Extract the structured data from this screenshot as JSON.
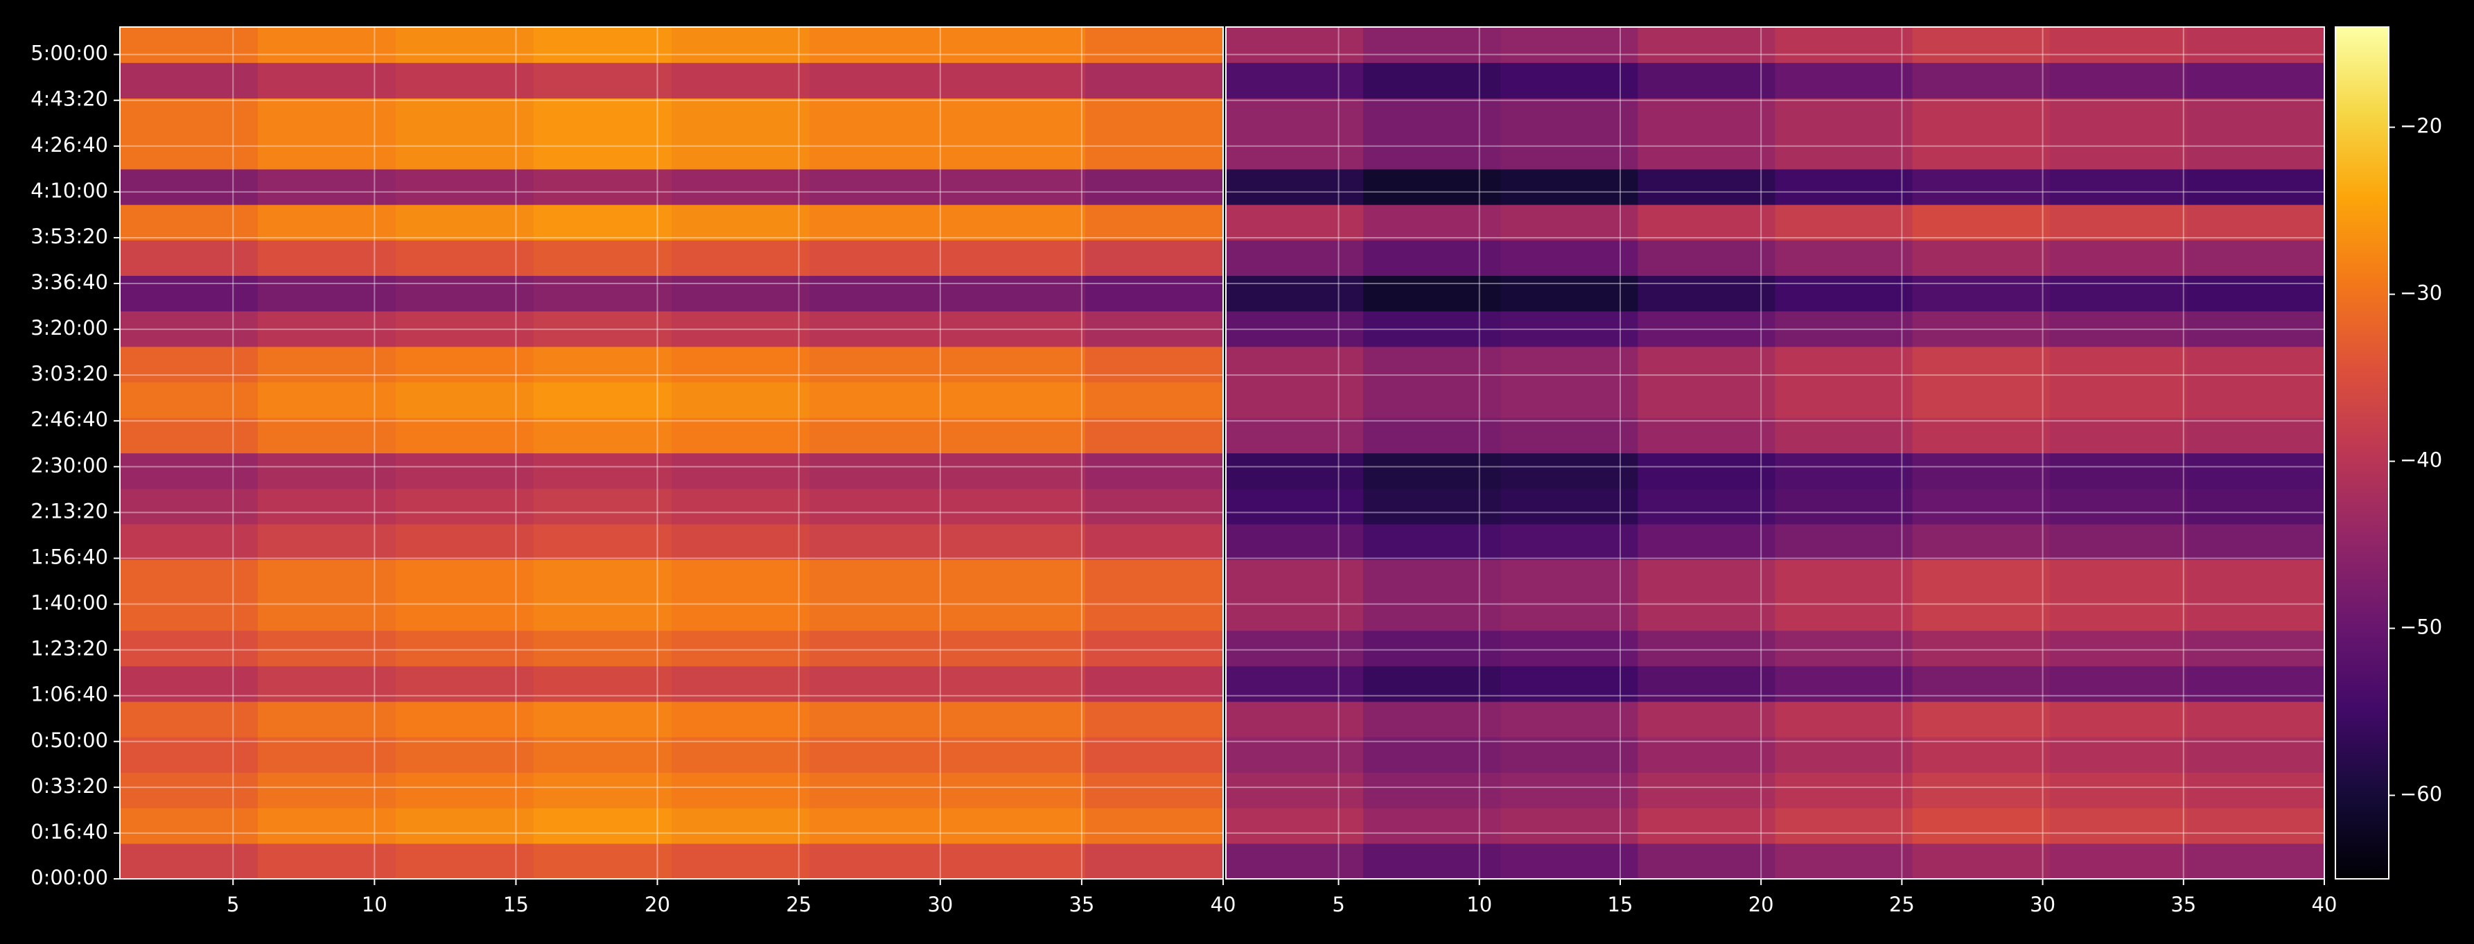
{
  "chart_data": {
    "type": "heatmap",
    "colormap": "inferno",
    "grid": true,
    "ylim": [
      0,
      18600
    ],
    "yticks": [
      {
        "value": 0,
        "label": "0:00:00"
      },
      {
        "value": 1000,
        "label": "0:16:40"
      },
      {
        "value": 2000,
        "label": "0:33:20"
      },
      {
        "value": 3000,
        "label": "0:50:00"
      },
      {
        "value": 4000,
        "label": "1:06:40"
      },
      {
        "value": 5000,
        "label": "1:23:20"
      },
      {
        "value": 6000,
        "label": "1:40:00"
      },
      {
        "value": 7000,
        "label": "1:56:40"
      },
      {
        "value": 8000,
        "label": "2:13:20"
      },
      {
        "value": 9000,
        "label": "2:30:00"
      },
      {
        "value": 10000,
        "label": "2:46:40"
      },
      {
        "value": 11000,
        "label": "3:03:20"
      },
      {
        "value": 12000,
        "label": "3:20:00"
      },
      {
        "value": 13000,
        "label": "3:36:40"
      },
      {
        "value": 14000,
        "label": "3:53:20"
      },
      {
        "value": 15000,
        "label": "4:10:00"
      },
      {
        "value": 16000,
        "label": "4:26:40"
      },
      {
        "value": 17000,
        "label": "4:43:20"
      },
      {
        "value": 18000,
        "label": "5:00:00"
      }
    ],
    "clim": [
      -65,
      -14
    ],
    "cticks": [
      {
        "value": -60,
        "label": "−60"
      },
      {
        "value": -50,
        "label": "−50"
      },
      {
        "value": -40,
        "label": "−40"
      },
      {
        "value": -30,
        "label": "−30"
      },
      {
        "value": -20,
        "label": "−20"
      }
    ],
    "panels": [
      {
        "xlim": [
          1,
          40
        ],
        "xticks": [
          5,
          10,
          15,
          20,
          25,
          30,
          35,
          40
        ],
        "z": [
          [
            -37,
            -35,
            -34,
            -33,
            -34,
            -35,
            -35,
            -37
          ],
          [
            -30,
            -28,
            -27,
            -26,
            -27,
            -28,
            -28,
            -30
          ],
          [
            -32,
            -30,
            -29,
            -28,
            -29,
            -30,
            -30,
            -32
          ],
          [
            -34,
            -32,
            -31,
            -30,
            -31,
            -32,
            -32,
            -34
          ],
          [
            -32,
            -30,
            -29,
            -28,
            -29,
            -30,
            -30,
            -32
          ],
          [
            -40,
            -38,
            -37,
            -36,
            -37,
            -38,
            -38,
            -40
          ],
          [
            -35,
            -33,
            -32,
            -31,
            -32,
            -33,
            -33,
            -35
          ],
          [
            -32,
            -30,
            -29,
            -28,
            -29,
            -30,
            -30,
            -32
          ],
          [
            -32,
            -30,
            -29,
            -28,
            -29,
            -30,
            -30,
            -32
          ],
          [
            -39,
            -37,
            -36,
            -35,
            -36,
            -37,
            -37,
            -39
          ],
          [
            -42,
            -40,
            -39,
            -38,
            -39,
            -40,
            -40,
            -42
          ],
          [
            -44,
            -42,
            -41,
            -40,
            -41,
            -42,
            -42,
            -44
          ],
          [
            -32,
            -30,
            -29,
            -28,
            -29,
            -30,
            -30,
            -32
          ],
          [
            -30,
            -28,
            -27,
            -26,
            -27,
            -28,
            -28,
            -30
          ],
          [
            -32,
            -30,
            -29,
            -28,
            -29,
            -30,
            -30,
            -32
          ],
          [
            -42,
            -40,
            -39,
            -38,
            -39,
            -40,
            -40,
            -42
          ],
          [
            -50,
            -48,
            -47,
            -46,
            -47,
            -48,
            -48,
            -50
          ],
          [
            -37,
            -35,
            -34,
            -33,
            -34,
            -35,
            -35,
            -37
          ],
          [
            -30,
            -28,
            -27,
            -26,
            -27,
            -28,
            -28,
            -30
          ],
          [
            -47,
            -45,
            -44,
            -43,
            -44,
            -45,
            -45,
            -47
          ],
          [
            -30,
            -28,
            -27,
            -26,
            -27,
            -28,
            -28,
            -30
          ],
          [
            -30,
            -28,
            -27,
            -26,
            -27,
            -28,
            -28,
            -30
          ],
          [
            -42,
            -40,
            -39,
            -38,
            -39,
            -40,
            -40,
            -42
          ],
          [
            -30,
            -28,
            -27,
            -26,
            -27,
            -28,
            -28,
            -30
          ]
        ]
      },
      {
        "xlim": [
          1,
          40
        ],
        "xticks": [
          5,
          10,
          15,
          20,
          25,
          30,
          35,
          40
        ],
        "z": [
          [
            -48,
            -51,
            -50,
            -47,
            -45,
            -43,
            -44,
            -45
          ],
          [
            -41,
            -44,
            -43,
            -40,
            -38,
            -36,
            -37,
            -38
          ],
          [
            -43,
            -46,
            -45,
            -42,
            -40,
            -38,
            -39,
            -40
          ],
          [
            -45,
            -48,
            -47,
            -44,
            -42,
            -40,
            -41,
            -42
          ],
          [
            -43,
            -46,
            -45,
            -42,
            -40,
            -38,
            -39,
            -40
          ],
          [
            -53,
            -56,
            -55,
            -52,
            -50,
            -48,
            -49,
            -50
          ],
          [
            -48,
            -51,
            -50,
            -47,
            -45,
            -43,
            -44,
            -45
          ],
          [
            -43,
            -46,
            -45,
            -42,
            -40,
            -38,
            -39,
            -40
          ],
          [
            -43,
            -46,
            -45,
            -42,
            -40,
            -38,
            -39,
            -40
          ],
          [
            -51,
            -54,
            -53,
            -50,
            -48,
            -46,
            -47,
            -48
          ],
          [
            -55,
            -58,
            -57,
            -54,
            -52,
            -50,
            -51,
            -52
          ],
          [
            -56,
            -59,
            -58,
            -55,
            -53,
            -51,
            -52,
            -53
          ],
          [
            -45,
            -48,
            -47,
            -44,
            -42,
            -40,
            -41,
            -42
          ],
          [
            -43,
            -46,
            -45,
            -42,
            -40,
            -38,
            -39,
            -40
          ],
          [
            -43,
            -46,
            -45,
            -42,
            -40,
            -38,
            -39,
            -40
          ],
          [
            -51,
            -54,
            -53,
            -50,
            -48,
            -46,
            -47,
            -48
          ],
          [
            -58,
            -61,
            -60,
            -57,
            -55,
            -53,
            -54,
            -55
          ],
          [
            -48,
            -51,
            -50,
            -47,
            -45,
            -43,
            -44,
            -45
          ],
          [
            -41,
            -44,
            -43,
            -40,
            -38,
            -36,
            -37,
            -38
          ],
          [
            -58,
            -61,
            -60,
            -57,
            -55,
            -53,
            -54,
            -55
          ],
          [
            -45,
            -48,
            -47,
            -44,
            -42,
            -40,
            -41,
            -42
          ],
          [
            -45,
            -48,
            -47,
            -44,
            -42,
            -40,
            -41,
            -42
          ],
          [
            -53,
            -56,
            -55,
            -52,
            -50,
            -48,
            -49,
            -50
          ],
          [
            -43,
            -46,
            -45,
            -42,
            -40,
            -38,
            -39,
            -40
          ]
        ]
      }
    ]
  }
}
